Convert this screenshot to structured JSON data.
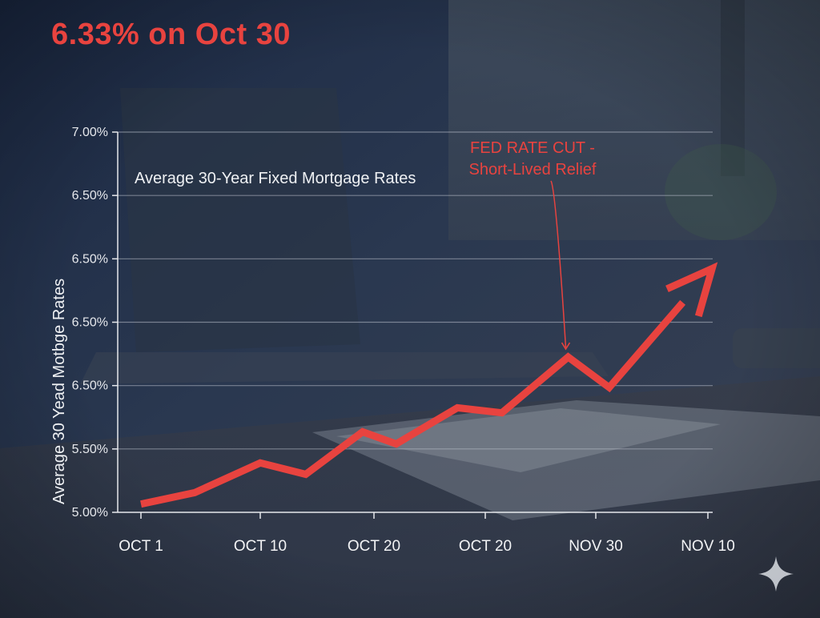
{
  "headline": "6.33% on Oct 30",
  "colors": {
    "accent": "#e8433f",
    "background_dark": "#1f2d45",
    "grid": "#b9c0cb",
    "text": "#eef0f3"
  },
  "icons": {
    "watermark": "sparkle-icon"
  },
  "chart_data": {
    "type": "line",
    "title": "Average 30-Year Fixed Mortgage Rates",
    "ylabel": "Average 30 Yead Motbge Rates",
    "xlabel": "",
    "x_ticks": [
      "OCT 1",
      "OCT 10",
      "OCT 20",
      "OCT 20",
      "NOV 30",
      "NOV 10"
    ],
    "y_ticks": [
      "5.00%",
      "5.50%",
      "6.50%",
      "6.50%",
      "6.50%",
      "6.50%",
      "7.00%"
    ],
    "ylim_tick_index": [
      0,
      6
    ],
    "grid": true,
    "series": [
      {
        "color": "#e8433f",
        "points": [
          {
            "x": 0.0,
            "y": 0.13
          },
          {
            "x": 0.45,
            "y": 0.31
          },
          {
            "x": 1.0,
            "y": 0.78
          },
          {
            "x": 1.4,
            "y": 0.6
          },
          {
            "x": 1.9,
            "y": 1.27
          },
          {
            "x": 2.2,
            "y": 1.08
          },
          {
            "x": 2.75,
            "y": 1.65
          },
          {
            "x": 3.15,
            "y": 1.57
          },
          {
            "x": 3.75,
            "y": 2.45
          },
          {
            "x": 4.12,
            "y": 1.97
          },
          {
            "x": 5.0,
            "y": 3.77
          }
        ]
      }
    ],
    "annotations": [
      {
        "lines": [
          "FED RATE CUT -",
          "Short-Lived Relief"
        ],
        "target": {
          "x": 3.75,
          "y": 2.45
        }
      }
    ]
  }
}
